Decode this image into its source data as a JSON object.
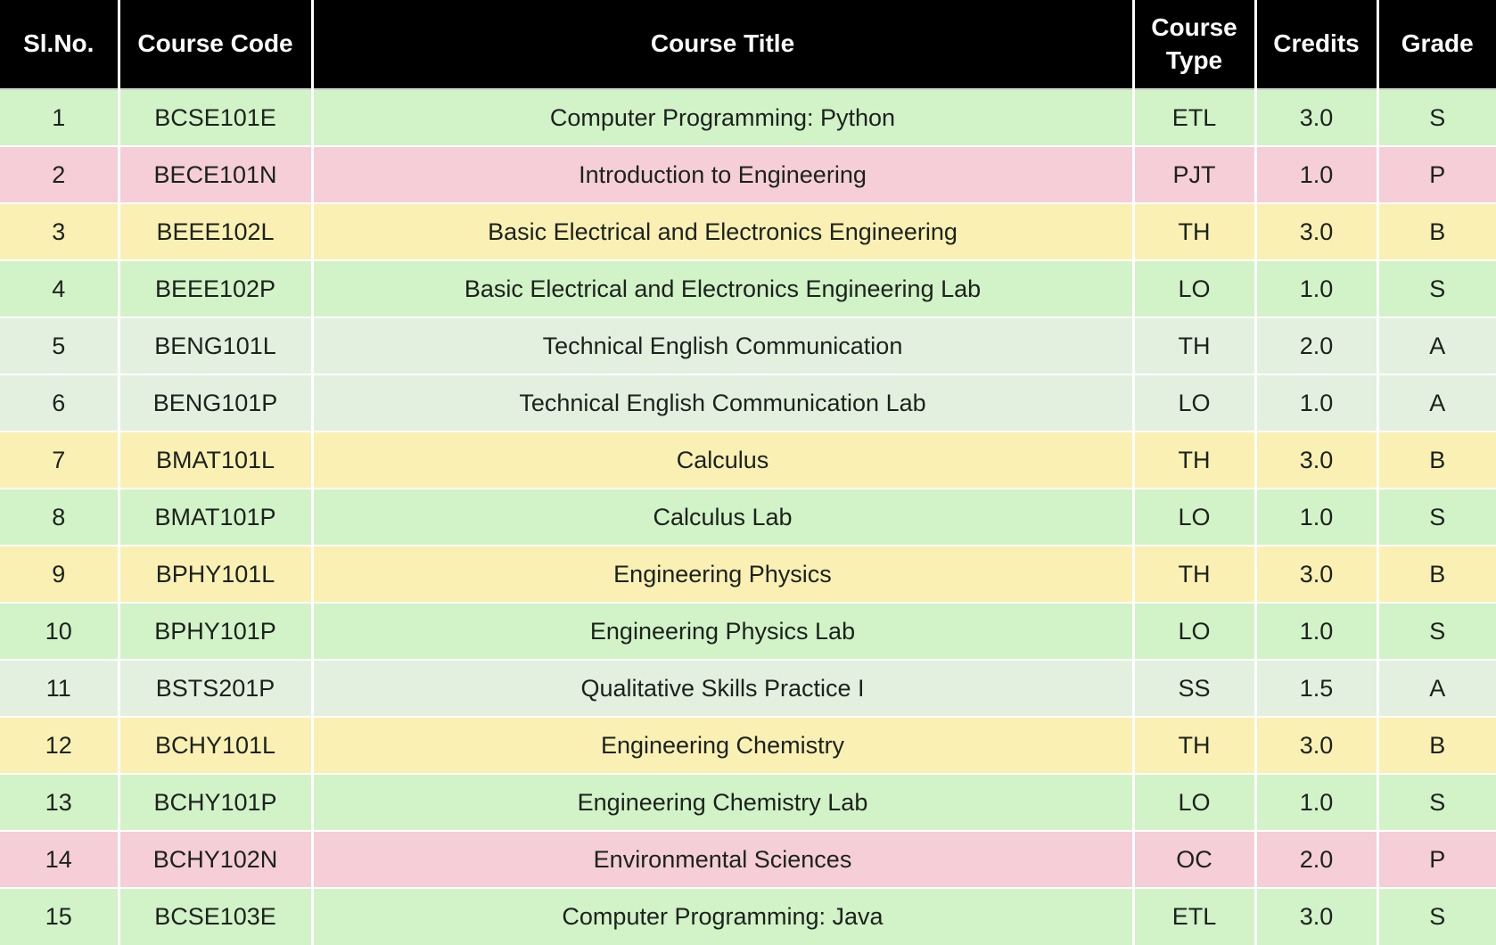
{
  "colors": {
    "header_bg": "#000000",
    "header_text": "#ffffff",
    "body_text": "#1c221c",
    "grade_row_colors": {
      "S": "#d2f2c8",
      "A": "#e3f0e0",
      "B": "#faf0b4",
      "P": "#f5ced8"
    }
  },
  "chart_data": {
    "type": "table",
    "columns": [
      "Sl.No.",
      "Course Code",
      "Course Title",
      "Course Type",
      "Credits",
      "Grade"
    ],
    "rows": [
      [
        "1",
        "BCSE101E",
        "Computer Programming: Python",
        "ETL",
        "3.0",
        "S"
      ],
      [
        "2",
        "BECE101N",
        "Introduction to Engineering",
        "PJT",
        "1.0",
        "P"
      ],
      [
        "3",
        "BEEE102L",
        "Basic Electrical and Electronics Engineering",
        "TH",
        "3.0",
        "B"
      ],
      [
        "4",
        "BEEE102P",
        "Basic Electrical and Electronics Engineering Lab",
        "LO",
        "1.0",
        "S"
      ],
      [
        "5",
        "BENG101L",
        "Technical English Communication",
        "TH",
        "2.0",
        "A"
      ],
      [
        "6",
        "BENG101P",
        "Technical English Communication Lab",
        "LO",
        "1.0",
        "A"
      ],
      [
        "7",
        "BMAT101L",
        "Calculus",
        "TH",
        "3.0",
        "B"
      ],
      [
        "8",
        "BMAT101P",
        "Calculus Lab",
        "LO",
        "1.0",
        "S"
      ],
      [
        "9",
        "BPHY101L",
        "Engineering Physics",
        "TH",
        "3.0",
        "B"
      ],
      [
        "10",
        "BPHY101P",
        "Engineering Physics Lab",
        "LO",
        "1.0",
        "S"
      ],
      [
        "11",
        "BSTS201P",
        "Qualitative Skills Practice I",
        "SS",
        "1.5",
        "A"
      ],
      [
        "12",
        "BCHY101L",
        "Engineering Chemistry",
        "TH",
        "3.0",
        "B"
      ],
      [
        "13",
        "BCHY101P",
        "Engineering Chemistry Lab",
        "LO",
        "1.0",
        "S"
      ],
      [
        "14",
        "BCHY102N",
        "Environmental Sciences",
        "OC",
        "2.0",
        "P"
      ],
      [
        "15",
        "BCSE103E",
        "Computer Programming: Java",
        "ETL",
        "3.0",
        "S"
      ]
    ]
  }
}
